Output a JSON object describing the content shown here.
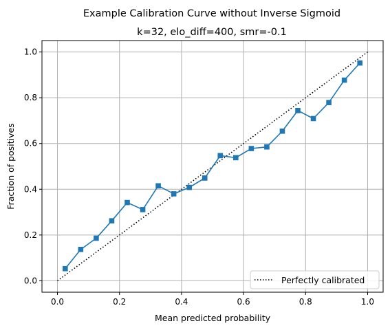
{
  "chart_data": {
    "type": "line",
    "suptitle": "Example Calibration Curve without Inverse Sigmoid",
    "title": "k=32, elo_diff=400, smr=-0.1",
    "xlabel": "Mean predicted probability",
    "ylabel": "Fraction of positives",
    "xlim": [
      -0.05,
      1.05
    ],
    "ylim": [
      -0.05,
      1.05
    ],
    "xticks": [
      0.0,
      0.2,
      0.4,
      0.6,
      0.8,
      1.0
    ],
    "yticks": [
      0.0,
      0.2,
      0.4,
      0.6,
      0.8,
      1.0
    ],
    "xtick_labels": [
      "0.0",
      "0.2",
      "0.4",
      "0.6",
      "0.8",
      "1.0"
    ],
    "ytick_labels": [
      "0.0",
      "0.2",
      "0.4",
      "0.6",
      "0.8",
      "1.0"
    ],
    "grid": true,
    "legend_position": "lower-right",
    "series": [
      {
        "name": "Perfectly calibrated",
        "style": "dotted",
        "color": "#000000",
        "x": [
          0.0,
          1.0
        ],
        "y": [
          0.0,
          1.0
        ]
      },
      {
        "style": "line-square-markers",
        "color": "#1f77b4",
        "x": [
          0.025,
          0.075,
          0.125,
          0.175,
          0.225,
          0.275,
          0.325,
          0.375,
          0.425,
          0.475,
          0.525,
          0.575,
          0.625,
          0.675,
          0.725,
          0.775,
          0.825,
          0.875,
          0.925,
          0.975
        ],
        "y": [
          0.053,
          0.137,
          0.186,
          0.262,
          0.342,
          0.311,
          0.415,
          0.38,
          0.408,
          0.449,
          0.547,
          0.538,
          0.578,
          0.585,
          0.654,
          0.744,
          0.709,
          0.779,
          0.877,
          0.952
        ]
      }
    ]
  }
}
